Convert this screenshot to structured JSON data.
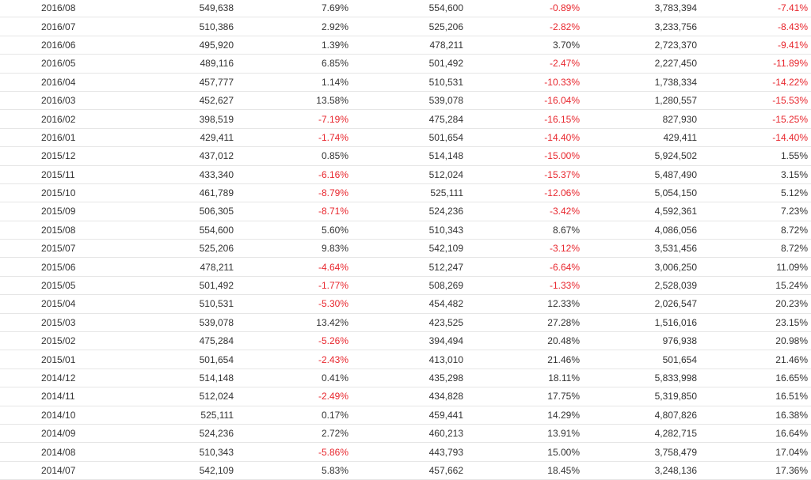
{
  "colors": {
    "negative": "#e8262d",
    "text": "#333333",
    "row_border": "#e6e6e6"
  },
  "table": {
    "rows": [
      [
        "2016/08",
        "549,638",
        "7.69%",
        "554,600",
        "-0.89%",
        "3,783,394",
        "-7.41%"
      ],
      [
        "2016/07",
        "510,386",
        "2.92%",
        "525,206",
        "-2.82%",
        "3,233,756",
        "-8.43%"
      ],
      [
        "2016/06",
        "495,920",
        "1.39%",
        "478,211",
        "3.70%",
        "2,723,370",
        "-9.41%"
      ],
      [
        "2016/05",
        "489,116",
        "6.85%",
        "501,492",
        "-2.47%",
        "2,227,450",
        "-11.89%"
      ],
      [
        "2016/04",
        "457,777",
        "1.14%",
        "510,531",
        "-10.33%",
        "1,738,334",
        "-14.22%"
      ],
      [
        "2016/03",
        "452,627",
        "13.58%",
        "539,078",
        "-16.04%",
        "1,280,557",
        "-15.53%"
      ],
      [
        "2016/02",
        "398,519",
        "-7.19%",
        "475,284",
        "-16.15%",
        "827,930",
        "-15.25%"
      ],
      [
        "2016/01",
        "429,411",
        "-1.74%",
        "501,654",
        "-14.40%",
        "429,411",
        "-14.40%"
      ],
      [
        "2015/12",
        "437,012",
        "0.85%",
        "514,148",
        "-15.00%",
        "5,924,502",
        "1.55%"
      ],
      [
        "2015/11",
        "433,340",
        "-6.16%",
        "512,024",
        "-15.37%",
        "5,487,490",
        "3.15%"
      ],
      [
        "2015/10",
        "461,789",
        "-8.79%",
        "525,111",
        "-12.06%",
        "5,054,150",
        "5.12%"
      ],
      [
        "2015/09",
        "506,305",
        "-8.71%",
        "524,236",
        "-3.42%",
        "4,592,361",
        "7.23%"
      ],
      [
        "2015/08",
        "554,600",
        "5.60%",
        "510,343",
        "8.67%",
        "4,086,056",
        "8.72%"
      ],
      [
        "2015/07",
        "525,206",
        "9.83%",
        "542,109",
        "-3.12%",
        "3,531,456",
        "8.72%"
      ],
      [
        "2015/06",
        "478,211",
        "-4.64%",
        "512,247",
        "-6.64%",
        "3,006,250",
        "11.09%"
      ],
      [
        "2015/05",
        "501,492",
        "-1.77%",
        "508,269",
        "-1.33%",
        "2,528,039",
        "15.24%"
      ],
      [
        "2015/04",
        "510,531",
        "-5.30%",
        "454,482",
        "12.33%",
        "2,026,547",
        "20.23%"
      ],
      [
        "2015/03",
        "539,078",
        "13.42%",
        "423,525",
        "27.28%",
        "1,516,016",
        "23.15%"
      ],
      [
        "2015/02",
        "475,284",
        "-5.26%",
        "394,494",
        "20.48%",
        "976,938",
        "20.98%"
      ],
      [
        "2015/01",
        "501,654",
        "-2.43%",
        "413,010",
        "21.46%",
        "501,654",
        "21.46%"
      ],
      [
        "2014/12",
        "514,148",
        "0.41%",
        "435,298",
        "18.11%",
        "5,833,998",
        "16.65%"
      ],
      [
        "2014/11",
        "512,024",
        "-2.49%",
        "434,828",
        "17.75%",
        "5,319,850",
        "16.51%"
      ],
      [
        "2014/10",
        "525,111",
        "0.17%",
        "459,441",
        "14.29%",
        "4,807,826",
        "16.38%"
      ],
      [
        "2014/09",
        "524,236",
        "2.72%",
        "460,213",
        "13.91%",
        "4,282,715",
        "16.64%"
      ],
      [
        "2014/08",
        "510,343",
        "-5.86%",
        "443,793",
        "15.00%",
        "3,758,479",
        "17.04%"
      ],
      [
        "2014/07",
        "542,109",
        "5.83%",
        "457,662",
        "18.45%",
        "3,248,136",
        "17.36%"
      ]
    ]
  }
}
